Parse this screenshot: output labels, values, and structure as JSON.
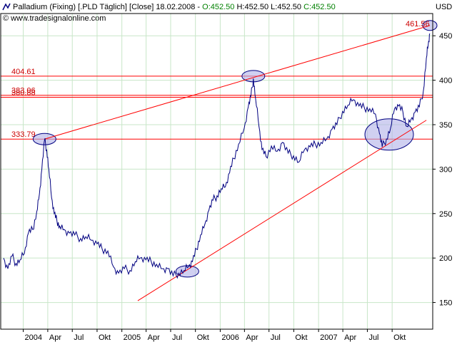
{
  "header": {
    "icon": "chart-line-icon",
    "text_black": "Palladium (Fixing) [.PLD  Täglich] [Close] 18.02.2008 - ",
    "open": "O:452.50",
    "text_mid": " H:452.50 L:452.50 ",
    "close": "C:452.50",
    "watermark": "© www.tradesignalonline.com"
  },
  "colors": {
    "price_line": "#000080",
    "trend_lines": "#ff0000",
    "grid": "#c8e6c8",
    "ellipse_fill": "#b0b0e8",
    "ellipse_stroke": "#000080",
    "green_text": "#008000"
  },
  "chart_data": {
    "type": "line",
    "currency_label": "USD",
    "ylim": [
      120,
      475
    ],
    "y_ticks": [
      150,
      200,
      250,
      300,
      350,
      400,
      450
    ],
    "x_start": "2003-10-20",
    "x_end": "2008-02-18",
    "x_ticks": [
      {
        "date": "2004-01-01",
        "label": "2004"
      },
      {
        "date": "2004-04-01",
        "label": "Apr"
      },
      {
        "date": "2004-07-01",
        "label": "Jul"
      },
      {
        "date": "2004-10-01",
        "label": "Okt"
      },
      {
        "date": "2005-01-01",
        "label": "2005"
      },
      {
        "date": "2005-04-01",
        "label": "Apr"
      },
      {
        "date": "2005-07-01",
        "label": "Jul"
      },
      {
        "date": "2005-10-01",
        "label": "Okt"
      },
      {
        "date": "2006-01-01",
        "label": "2006"
      },
      {
        "date": "2006-04-01",
        "label": "Apr"
      },
      {
        "date": "2006-07-01",
        "label": "Jul"
      },
      {
        "date": "2006-10-01",
        "label": "Okt"
      },
      {
        "date": "2007-01-01",
        "label": "2007"
      },
      {
        "date": "2007-04-01",
        "label": "Apr"
      },
      {
        "date": "2007-07-01",
        "label": "Jul"
      },
      {
        "date": "2007-10-01",
        "label": "Okt"
      }
    ],
    "horizontal_levels": [
      {
        "value": 404.61,
        "label": "404.61"
      },
      {
        "value": 383.06,
        "label": "383.06"
      },
      {
        "value": 380.88,
        "label": "380.88"
      },
      {
        "value": 333.79,
        "label": "333.79"
      }
    ],
    "last_label": "461.56",
    "trend_lines": [
      {
        "from": {
          "date": "2004-03-20",
          "value": 333.79
        },
        "to": {
          "date": "2008-02-18",
          "value": 461.56
        }
      },
      {
        "from": {
          "date": "2005-03-01",
          "value": 152
        },
        "to": {
          "date": "2008-02-05",
          "value": 355
        }
      }
    ],
    "highlight_ellipses": [
      {
        "date": "2004-03-20",
        "value": 333.79
      },
      {
        "date": "2006-05-04",
        "value": 404.61
      },
      {
        "date": "2005-09-01",
        "value": 185
      },
      {
        "date": "2007-09-20",
        "value": 339
      },
      {
        "date": "2008-02-18",
        "value": 461.56
      }
    ],
    "series": [
      {
        "points": [
          [
            "2003-10-20",
            200
          ],
          [
            "2003-11-05",
            188
          ],
          [
            "2003-11-20",
            202
          ],
          [
            "2003-12-05",
            194
          ],
          [
            "2003-12-20",
            198
          ],
          [
            "2004-01-05",
            205
          ],
          [
            "2004-01-20",
            228
          ],
          [
            "2004-02-05",
            232
          ],
          [
            "2004-02-20",
            252
          ],
          [
            "2004-03-01",
            272
          ],
          [
            "2004-03-10",
            300
          ],
          [
            "2004-03-20",
            333
          ],
          [
            "2004-03-28",
            322
          ],
          [
            "2004-04-05",
            300
          ],
          [
            "2004-04-15",
            268
          ],
          [
            "2004-04-25",
            250
          ],
          [
            "2004-05-05",
            242
          ],
          [
            "2004-05-15",
            236
          ],
          [
            "2004-06-01",
            232
          ],
          [
            "2004-06-20",
            228
          ],
          [
            "2004-07-10",
            226
          ],
          [
            "2004-08-01",
            222
          ],
          [
            "2004-08-20",
            224
          ],
          [
            "2004-09-10",
            220
          ],
          [
            "2004-10-01",
            216
          ],
          [
            "2004-10-20",
            210
          ],
          [
            "2004-11-10",
            208
          ],
          [
            "2004-12-01",
            190
          ],
          [
            "2004-12-20",
            183
          ],
          [
            "2005-01-10",
            188
          ],
          [
            "2005-01-31",
            186
          ],
          [
            "2005-02-20",
            196
          ],
          [
            "2005-03-10",
            200
          ],
          [
            "2005-03-31",
            198
          ],
          [
            "2005-04-20",
            196
          ],
          [
            "2005-05-10",
            193
          ],
          [
            "2005-06-01",
            188
          ],
          [
            "2005-06-20",
            188
          ],
          [
            "2005-07-10",
            180
          ],
          [
            "2005-07-31",
            183
          ],
          [
            "2005-08-20",
            186
          ],
          [
            "2005-09-05",
            190
          ],
          [
            "2005-09-20",
            196
          ],
          [
            "2005-10-05",
            210
          ],
          [
            "2005-10-20",
            226
          ],
          [
            "2005-11-05",
            238
          ],
          [
            "2005-11-20",
            254
          ],
          [
            "2005-12-05",
            265
          ],
          [
            "2005-12-20",
            270
          ],
          [
            "2006-01-05",
            278
          ],
          [
            "2006-01-20",
            280
          ],
          [
            "2006-02-05",
            296
          ],
          [
            "2006-02-20",
            312
          ],
          [
            "2006-03-10",
            328
          ],
          [
            "2006-03-31",
            346
          ],
          [
            "2006-04-15",
            370
          ],
          [
            "2006-04-25",
            382
          ],
          [
            "2006-05-04",
            402
          ],
          [
            "2006-05-12",
            380
          ],
          [
            "2006-05-25",
            348
          ],
          [
            "2006-06-05",
            322
          ],
          [
            "2006-06-20",
            314
          ],
          [
            "2006-07-10",
            326
          ],
          [
            "2006-07-31",
            320
          ],
          [
            "2006-08-20",
            330
          ],
          [
            "2006-09-10",
            318
          ],
          [
            "2006-09-30",
            315
          ],
          [
            "2006-10-20",
            308
          ],
          [
            "2006-11-10",
            322
          ],
          [
            "2006-12-01",
            325
          ],
          [
            "2006-12-20",
            328
          ],
          [
            "2007-01-10",
            330
          ],
          [
            "2007-01-31",
            334
          ],
          [
            "2007-02-20",
            345
          ],
          [
            "2007-03-10",
            350
          ],
          [
            "2007-03-31",
            365
          ],
          [
            "2007-04-20",
            372
          ],
          [
            "2007-05-10",
            378
          ],
          [
            "2007-05-31",
            371
          ],
          [
            "2007-06-20",
            369
          ],
          [
            "2007-07-10",
            368
          ],
          [
            "2007-07-31",
            362
          ],
          [
            "2007-08-15",
            340
          ],
          [
            "2007-08-25",
            325
          ],
          [
            "2007-09-10",
            334
          ],
          [
            "2007-09-25",
            346
          ],
          [
            "2007-10-10",
            368
          ],
          [
            "2007-10-25",
            371
          ],
          [
            "2007-11-10",
            364
          ],
          [
            "2007-11-25",
            348
          ],
          [
            "2007-12-10",
            356
          ],
          [
            "2007-12-25",
            364
          ],
          [
            "2008-01-10",
            370
          ],
          [
            "2008-01-25",
            388
          ],
          [
            "2008-02-05",
            425
          ],
          [
            "2008-02-12",
            440
          ],
          [
            "2008-02-18",
            452.5
          ]
        ]
      }
    ]
  }
}
